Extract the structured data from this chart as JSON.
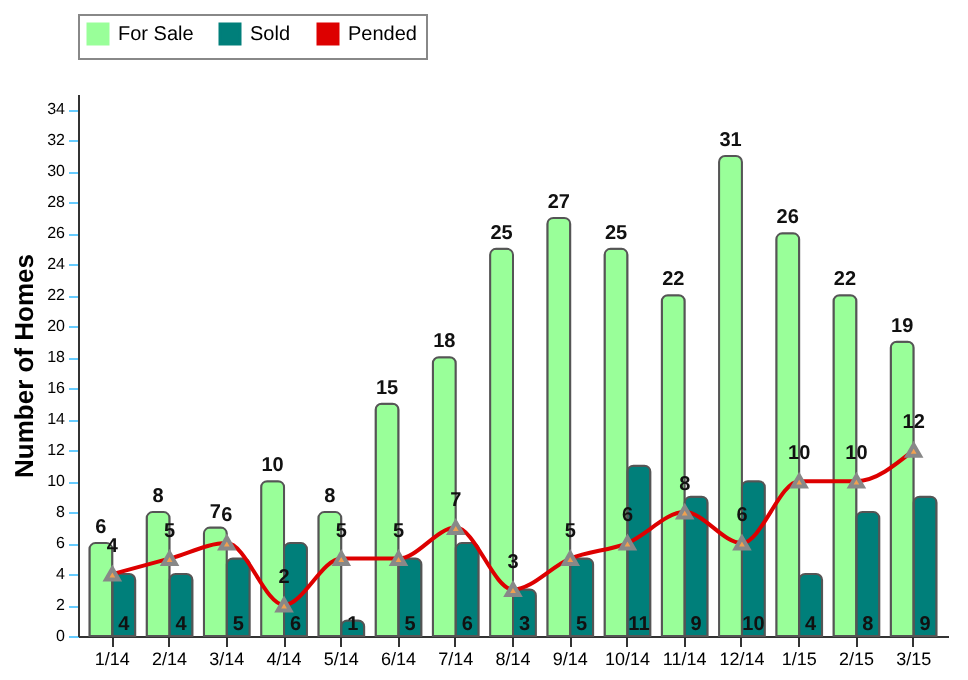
{
  "chart_data": {
    "type": "bar",
    "ylabel": "Number of Homes",
    "categories": [
      "1/14",
      "2/14",
      "3/14",
      "4/14",
      "5/14",
      "6/14",
      "7/14",
      "8/14",
      "9/14",
      "10/14",
      "11/14",
      "12/14",
      "1/15",
      "2/15",
      "3/15"
    ],
    "series": [
      {
        "name": "For Sale",
        "color": "#99ff99",
        "values": [
          6,
          8,
          7,
          10,
          8,
          15,
          18,
          25,
          27,
          25,
          22,
          31,
          26,
          22,
          19
        ]
      },
      {
        "name": "Sold",
        "color": "#007f7a",
        "values": [
          4,
          4,
          5,
          6,
          1,
          5,
          6,
          3,
          5,
          11,
          9,
          10,
          4,
          8,
          9
        ]
      },
      {
        "name": "Pended",
        "type": "line",
        "color": "#dd0000",
        "marker": "triangle",
        "values": [
          4,
          5,
          6,
          2,
          5,
          5,
          7,
          3,
          5,
          6,
          8,
          6,
          10,
          10,
          12
        ]
      }
    ],
    "ylim": [
      0,
      35
    ],
    "yticks": [
      0,
      2,
      4,
      6,
      8,
      10,
      12,
      14,
      16,
      18,
      20,
      22,
      24,
      26,
      28,
      30,
      32,
      34
    ],
    "data_labels": true,
    "legend": "top",
    "grid": false
  }
}
